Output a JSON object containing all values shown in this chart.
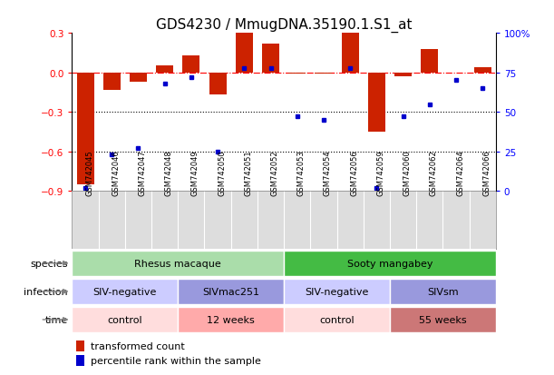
{
  "title": "GDS4230 / MmugDNA.35190.1.S1_at",
  "samples": [
    "GSM742045",
    "GSM742046",
    "GSM742047",
    "GSM742048",
    "GSM742049",
    "GSM742050",
    "GSM742051",
    "GSM742052",
    "GSM742053",
    "GSM742054",
    "GSM742056",
    "GSM742059",
    "GSM742060",
    "GSM742062",
    "GSM742064",
    "GSM742066"
  ],
  "red_values": [
    -0.85,
    -0.13,
    -0.07,
    0.05,
    0.13,
    -0.17,
    0.3,
    0.22,
    -0.01,
    -0.01,
    0.3,
    -0.45,
    -0.03,
    0.18,
    0.0,
    0.04
  ],
  "blue_values": [
    2,
    23,
    27,
    68,
    72,
    25,
    78,
    78,
    47,
    45,
    78,
    2,
    47,
    55,
    70,
    65
  ],
  "ylim_left": [
    -0.9,
    0.3
  ],
  "ylim_right": [
    0,
    100
  ],
  "left_ticks": [
    0.3,
    0.0,
    -0.3,
    -0.6,
    -0.9
  ],
  "right_ticks": [
    100,
    75,
    50,
    25,
    0
  ],
  "right_tick_labels": [
    "100%",
    "75",
    "50",
    "25",
    "0"
  ],
  "bar_color": "#cc2200",
  "dot_color": "#0000cc",
  "plot_bg": "#ffffff",
  "xtick_bg": "#dddddd",
  "species_blocks": [
    {
      "label": "Rhesus macaque",
      "start": 0,
      "end": 7,
      "color": "#aaddaa"
    },
    {
      "label": "Sooty mangabey",
      "start": 8,
      "end": 15,
      "color": "#44bb44"
    }
  ],
  "infection_blocks": [
    {
      "label": "SIV-negative",
      "start": 0,
      "end": 3,
      "color": "#ccccff"
    },
    {
      "label": "SIVmac251",
      "start": 4,
      "end": 7,
      "color": "#9999dd"
    },
    {
      "label": "SIV-negative",
      "start": 8,
      "end": 11,
      "color": "#ccccff"
    },
    {
      "label": "SIVsm",
      "start": 12,
      "end": 15,
      "color": "#9999dd"
    }
  ],
  "time_blocks": [
    {
      "label": "control",
      "start": 0,
      "end": 3,
      "color": "#ffdddd"
    },
    {
      "label": "12 weeks",
      "start": 4,
      "end": 7,
      "color": "#ffaaaa"
    },
    {
      "label": "control",
      "start": 8,
      "end": 11,
      "color": "#ffdddd"
    },
    {
      "label": "55 weeks",
      "start": 12,
      "end": 15,
      "color": "#cc7777"
    }
  ],
  "legend_items": [
    {
      "label": "transformed count",
      "color": "#cc2200"
    },
    {
      "label": "percentile rank within the sample",
      "color": "#0000cc"
    }
  ],
  "row_labels": [
    "species",
    "infection",
    "time"
  ],
  "title_fontsize": 11,
  "tick_fontsize": 7.5,
  "row_label_fontsize": 8,
  "block_fontsize": 8
}
